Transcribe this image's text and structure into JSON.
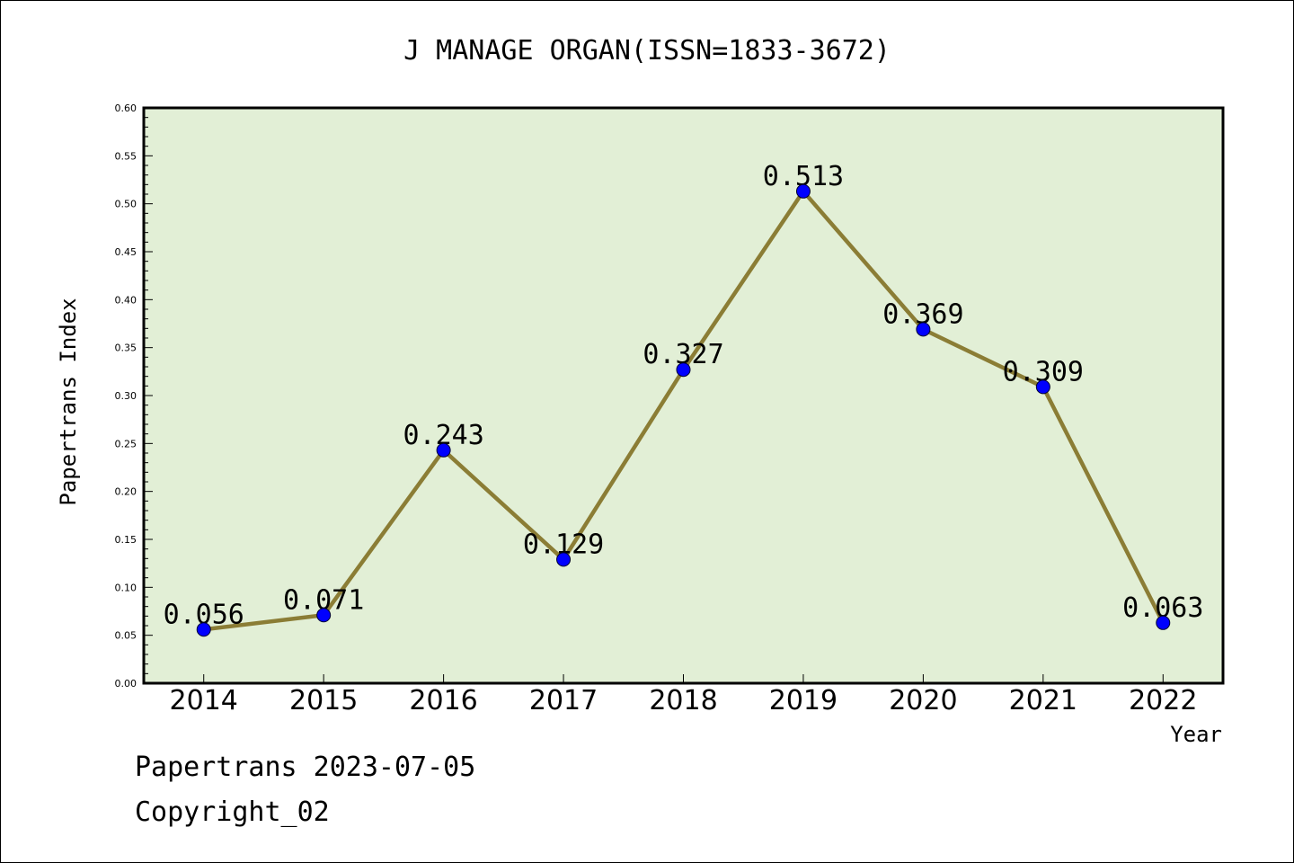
{
  "chart_data": {
    "type": "line",
    "title": "J MANAGE ORGAN(ISSN=1833-3672)",
    "xlabel": "Year",
    "ylabel": "Papertrans Index",
    "categories": [
      "2014",
      "2015",
      "2016",
      "2017",
      "2018",
      "2019",
      "2020",
      "2021",
      "2022"
    ],
    "series": [
      {
        "values": [
          0.056,
          0.071,
          0.243,
          0.129,
          0.327,
          0.513,
          0.369,
          0.309,
          0.063
        ],
        "labels": [
          "0.056",
          "0.071",
          "0.243",
          "0.129",
          "0.327",
          "0.513",
          "0.369",
          "0.309",
          "0.063"
        ]
      }
    ],
    "ylim": [
      0,
      0.6
    ],
    "yticks": [
      "0.00",
      "0.05",
      "0.10",
      "0.15",
      "0.20",
      "0.25",
      "0.30",
      "0.35",
      "0.40",
      "0.45",
      "0.50",
      "0.55",
      "0.60"
    ],
    "grid": false,
    "colors": {
      "plot_background": "#e2efd6",
      "line": "#8b7d35",
      "marker": "#0000ff"
    }
  },
  "footer": {
    "source": "Papertrans 2023-07-05",
    "copyright": "Copyright_02"
  }
}
